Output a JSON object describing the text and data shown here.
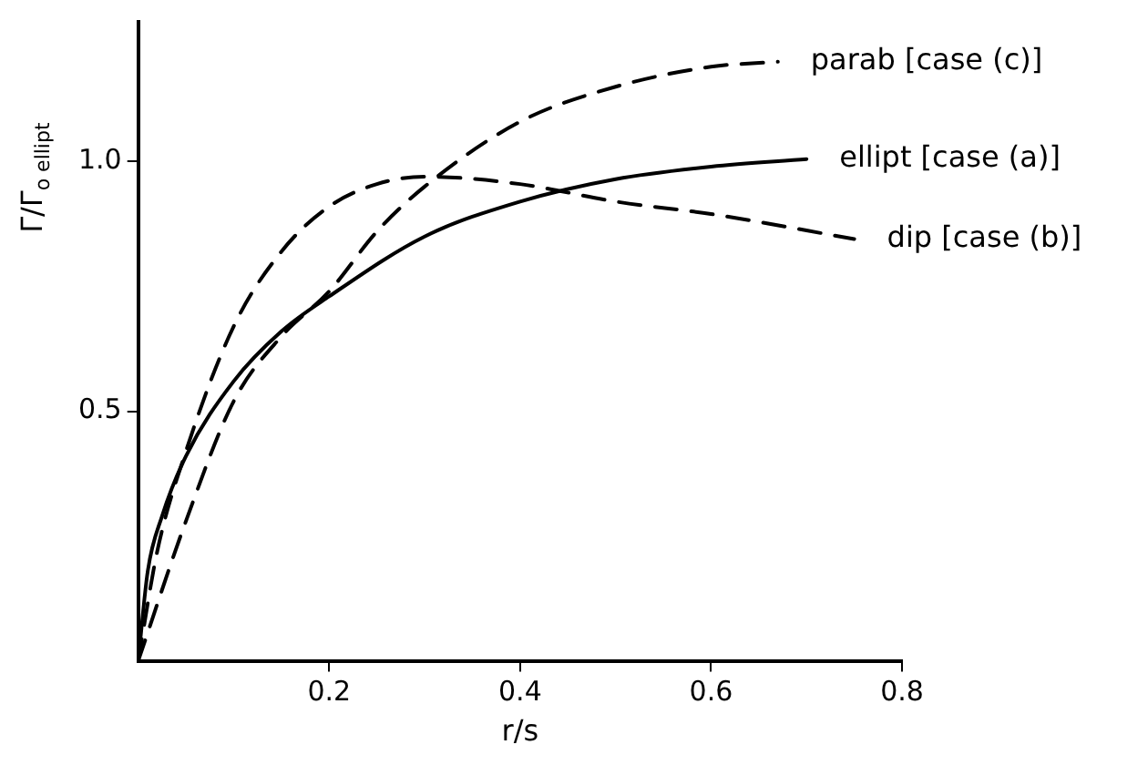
{
  "chart_data": {
    "type": "line",
    "xlabel": "r/s",
    "ylabel": "Γ/Γ$_{o ellipt}$",
    "xlim": [
      0,
      0.8
    ],
    "ylim": [
      0,
      1.28
    ],
    "xticks": [
      0.2,
      0.4,
      0.6,
      0.8
    ],
    "yticks": [
      0.5,
      {
        "value": 1,
        "label": "1.0"
      }
    ],
    "grid": false,
    "legend": false,
    "marker": "none",
    "series": [
      {
        "name": "parab [case (c)]",
        "color": "#000000",
        "line_style": "dashed",
        "x": [
          0,
          0.05,
          0.1,
          0.15,
          0.2,
          0.25,
          0.3,
          0.4,
          0.5,
          0.6,
          0.67
        ],
        "values": [
          0,
          0.28,
          0.52,
          0.65,
          0.74,
          0.86,
          0.95,
          1.08,
          1.15,
          1.19,
          1.2
        ]
      },
      {
        "name": "ellipt [case (a)]",
        "color": "#000000",
        "line_style": "solid",
        "x": [
          0,
          0.01,
          0.025,
          0.05,
          0.1,
          0.15,
          0.2,
          0.3,
          0.4,
          0.5,
          0.6,
          0.7
        ],
        "values": [
          0,
          0.18,
          0.29,
          0.41,
          0.56,
          0.66,
          0.73,
          0.85,
          0.92,
          0.965,
          0.99,
          1.005
        ]
      },
      {
        "name": "dip [case (b)]",
        "color": "#000000",
        "line_style": "dashed",
        "x": [
          0,
          0.02,
          0.05,
          0.1,
          0.15,
          0.2,
          0.25,
          0.3,
          0.4,
          0.5,
          0.6,
          0.75
        ],
        "values": [
          0,
          0.22,
          0.42,
          0.67,
          0.82,
          0.91,
          0.955,
          0.97,
          0.955,
          0.92,
          0.895,
          0.845
        ]
      }
    ]
  }
}
